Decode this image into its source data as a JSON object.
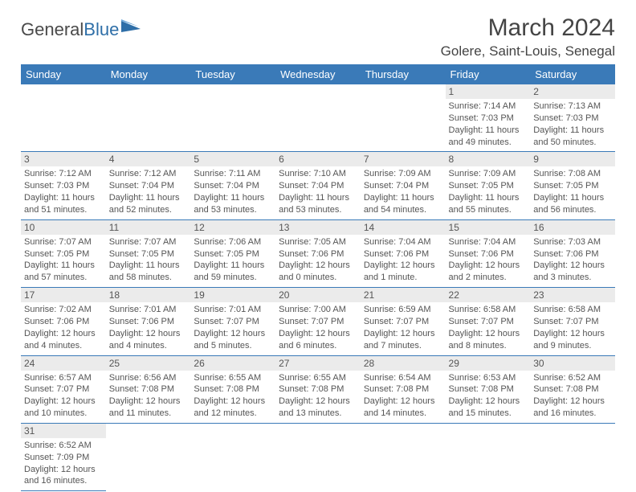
{
  "brand": {
    "part1": "General",
    "part2": "Blue"
  },
  "title": "March 2024",
  "location": "Golere, Saint-Louis, Senegal",
  "colors": {
    "header_bg": "#3a7ab8",
    "header_text": "#ffffff",
    "daynum_bg": "#ebebeb",
    "border": "#3a7ab8",
    "text": "#4a4a4a",
    "brand_blue": "#2f6fa8"
  },
  "typography": {
    "title_fontsize": 30,
    "location_fontsize": 17,
    "dayhead_fontsize": 13,
    "daynum_fontsize": 12,
    "info_fontsize": 11
  },
  "daynames": [
    "Sunday",
    "Monday",
    "Tuesday",
    "Wednesday",
    "Thursday",
    "Friday",
    "Saturday"
  ],
  "weeks": [
    [
      null,
      null,
      null,
      null,
      null,
      {
        "n": "1",
        "sr": "7:14 AM",
        "ss": "7:03 PM",
        "dl": "11 hours and 49 minutes."
      },
      {
        "n": "2",
        "sr": "7:13 AM",
        "ss": "7:03 PM",
        "dl": "11 hours and 50 minutes."
      }
    ],
    [
      {
        "n": "3",
        "sr": "7:12 AM",
        "ss": "7:03 PM",
        "dl": "11 hours and 51 minutes."
      },
      {
        "n": "4",
        "sr": "7:12 AM",
        "ss": "7:04 PM",
        "dl": "11 hours and 52 minutes."
      },
      {
        "n": "5",
        "sr": "7:11 AM",
        "ss": "7:04 PM",
        "dl": "11 hours and 53 minutes."
      },
      {
        "n": "6",
        "sr": "7:10 AM",
        "ss": "7:04 PM",
        "dl": "11 hours and 53 minutes."
      },
      {
        "n": "7",
        "sr": "7:09 AM",
        "ss": "7:04 PM",
        "dl": "11 hours and 54 minutes."
      },
      {
        "n": "8",
        "sr": "7:09 AM",
        "ss": "7:05 PM",
        "dl": "11 hours and 55 minutes."
      },
      {
        "n": "9",
        "sr": "7:08 AM",
        "ss": "7:05 PM",
        "dl": "11 hours and 56 minutes."
      }
    ],
    [
      {
        "n": "10",
        "sr": "7:07 AM",
        "ss": "7:05 PM",
        "dl": "11 hours and 57 minutes."
      },
      {
        "n": "11",
        "sr": "7:07 AM",
        "ss": "7:05 PM",
        "dl": "11 hours and 58 minutes."
      },
      {
        "n": "12",
        "sr": "7:06 AM",
        "ss": "7:05 PM",
        "dl": "11 hours and 59 minutes."
      },
      {
        "n": "13",
        "sr": "7:05 AM",
        "ss": "7:06 PM",
        "dl": "12 hours and 0 minutes."
      },
      {
        "n": "14",
        "sr": "7:04 AM",
        "ss": "7:06 PM",
        "dl": "12 hours and 1 minute."
      },
      {
        "n": "15",
        "sr": "7:04 AM",
        "ss": "7:06 PM",
        "dl": "12 hours and 2 minutes."
      },
      {
        "n": "16",
        "sr": "7:03 AM",
        "ss": "7:06 PM",
        "dl": "12 hours and 3 minutes."
      }
    ],
    [
      {
        "n": "17",
        "sr": "7:02 AM",
        "ss": "7:06 PM",
        "dl": "12 hours and 4 minutes."
      },
      {
        "n": "18",
        "sr": "7:01 AM",
        "ss": "7:06 PM",
        "dl": "12 hours and 4 minutes."
      },
      {
        "n": "19",
        "sr": "7:01 AM",
        "ss": "7:07 PM",
        "dl": "12 hours and 5 minutes."
      },
      {
        "n": "20",
        "sr": "7:00 AM",
        "ss": "7:07 PM",
        "dl": "12 hours and 6 minutes."
      },
      {
        "n": "21",
        "sr": "6:59 AM",
        "ss": "7:07 PM",
        "dl": "12 hours and 7 minutes."
      },
      {
        "n": "22",
        "sr": "6:58 AM",
        "ss": "7:07 PM",
        "dl": "12 hours and 8 minutes."
      },
      {
        "n": "23",
        "sr": "6:58 AM",
        "ss": "7:07 PM",
        "dl": "12 hours and 9 minutes."
      }
    ],
    [
      {
        "n": "24",
        "sr": "6:57 AM",
        "ss": "7:07 PM",
        "dl": "12 hours and 10 minutes."
      },
      {
        "n": "25",
        "sr": "6:56 AM",
        "ss": "7:08 PM",
        "dl": "12 hours and 11 minutes."
      },
      {
        "n": "26",
        "sr": "6:55 AM",
        "ss": "7:08 PM",
        "dl": "12 hours and 12 minutes."
      },
      {
        "n": "27",
        "sr": "6:55 AM",
        "ss": "7:08 PM",
        "dl": "12 hours and 13 minutes."
      },
      {
        "n": "28",
        "sr": "6:54 AM",
        "ss": "7:08 PM",
        "dl": "12 hours and 14 minutes."
      },
      {
        "n": "29",
        "sr": "6:53 AM",
        "ss": "7:08 PM",
        "dl": "12 hours and 15 minutes."
      },
      {
        "n": "30",
        "sr": "6:52 AM",
        "ss": "7:08 PM",
        "dl": "12 hours and 16 minutes."
      }
    ],
    [
      {
        "n": "31",
        "sr": "6:52 AM",
        "ss": "7:09 PM",
        "dl": "12 hours and 16 minutes."
      },
      null,
      null,
      null,
      null,
      null,
      null
    ]
  ],
  "labels": {
    "sunrise": "Sunrise: ",
    "sunset": "Sunset: ",
    "daylight": "Daylight: "
  }
}
